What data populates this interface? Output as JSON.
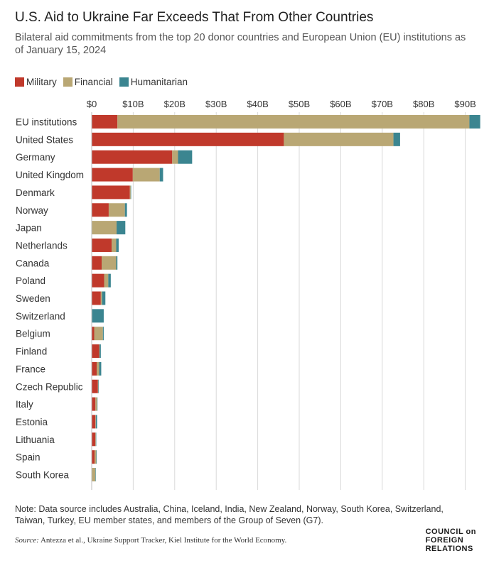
{
  "header": {
    "title": "U.S. Aid to Ukraine Far Exceeds That From Other Countries",
    "subtitle": "Bilateral aid commitments from the top 20 donor countries and European Union (EU) institutions as of January 15, 2024"
  },
  "legend": {
    "items": [
      {
        "label": "Military",
        "color": "#c0392b"
      },
      {
        "label": "Financial",
        "color": "#b9a774"
      },
      {
        "label": "Humanitarian",
        "color": "#3b8590"
      }
    ]
  },
  "chart_data": {
    "type": "bar",
    "orientation": "horizontal",
    "stacked": true,
    "title": "",
    "xlabel": "",
    "ylabel": "",
    "xlim": [
      0,
      95
    ],
    "x_ticks": [
      "$0",
      "$10B",
      "$20B",
      "$30B",
      "$40B",
      "$50B",
      "$60B",
      "$70B",
      "$80B",
      "$90B"
    ],
    "x_tick_values": [
      0,
      10,
      20,
      30,
      40,
      50,
      60,
      70,
      80,
      90
    ],
    "grid": true,
    "legend_position": "top-left",
    "categories": [
      "EU institutions",
      "United States",
      "Germany",
      "United Kingdom",
      "Denmark",
      "Norway",
      "Japan",
      "Netherlands",
      "Canada",
      "Poland",
      "Sweden",
      "Switzerland",
      "Belgium",
      "Finland",
      "France",
      "Czech Republic",
      "Italy",
      "Estonia",
      "Lithuania",
      "Spain",
      "South Korea"
    ],
    "series": [
      {
        "name": "Military",
        "color": "#c0392b",
        "values": [
          6.2,
          46.3,
          19.4,
          9.9,
          9.2,
          4.1,
          0.0,
          4.8,
          2.4,
          3.0,
          2.2,
          0.0,
          0.6,
          1.8,
          1.2,
          1.5,
          0.9,
          0.9,
          0.9,
          0.7,
          0.0
        ]
      },
      {
        "name": "Financial",
        "color": "#b9a774",
        "values": [
          84.8,
          26.4,
          1.4,
          6.5,
          0.2,
          3.9,
          6.0,
          1.1,
          3.5,
          1.0,
          0.3,
          0.1,
          2.1,
          0.1,
          0.6,
          0.1,
          0.4,
          0.1,
          0.1,
          0.4,
          0.9
        ]
      },
      {
        "name": "Humanitarian",
        "color": "#3b8590",
        "values": [
          2.6,
          1.6,
          3.4,
          0.8,
          0.1,
          0.5,
          2.1,
          0.6,
          0.3,
          0.6,
          0.8,
          2.8,
          0.2,
          0.3,
          0.5,
          0.1,
          0.1,
          0.3,
          0.1,
          0.1,
          0.1
        ]
      }
    ]
  },
  "footer": {
    "note": "Note: Data source includes Australia, China, Iceland, India, New Zealand, Norway, South Korea, Switzerland, Taiwan, Turkey, EU member states, and members of the Group of Seven (G7).",
    "source_label": "Source:",
    "source_text": " Antezza et al., Ukraine Support Tracker, Kiel Institute for the World Economy.",
    "logo_lines": [
      "COUNCIL on",
      "FOREIGN",
      "RELATIONS"
    ]
  }
}
